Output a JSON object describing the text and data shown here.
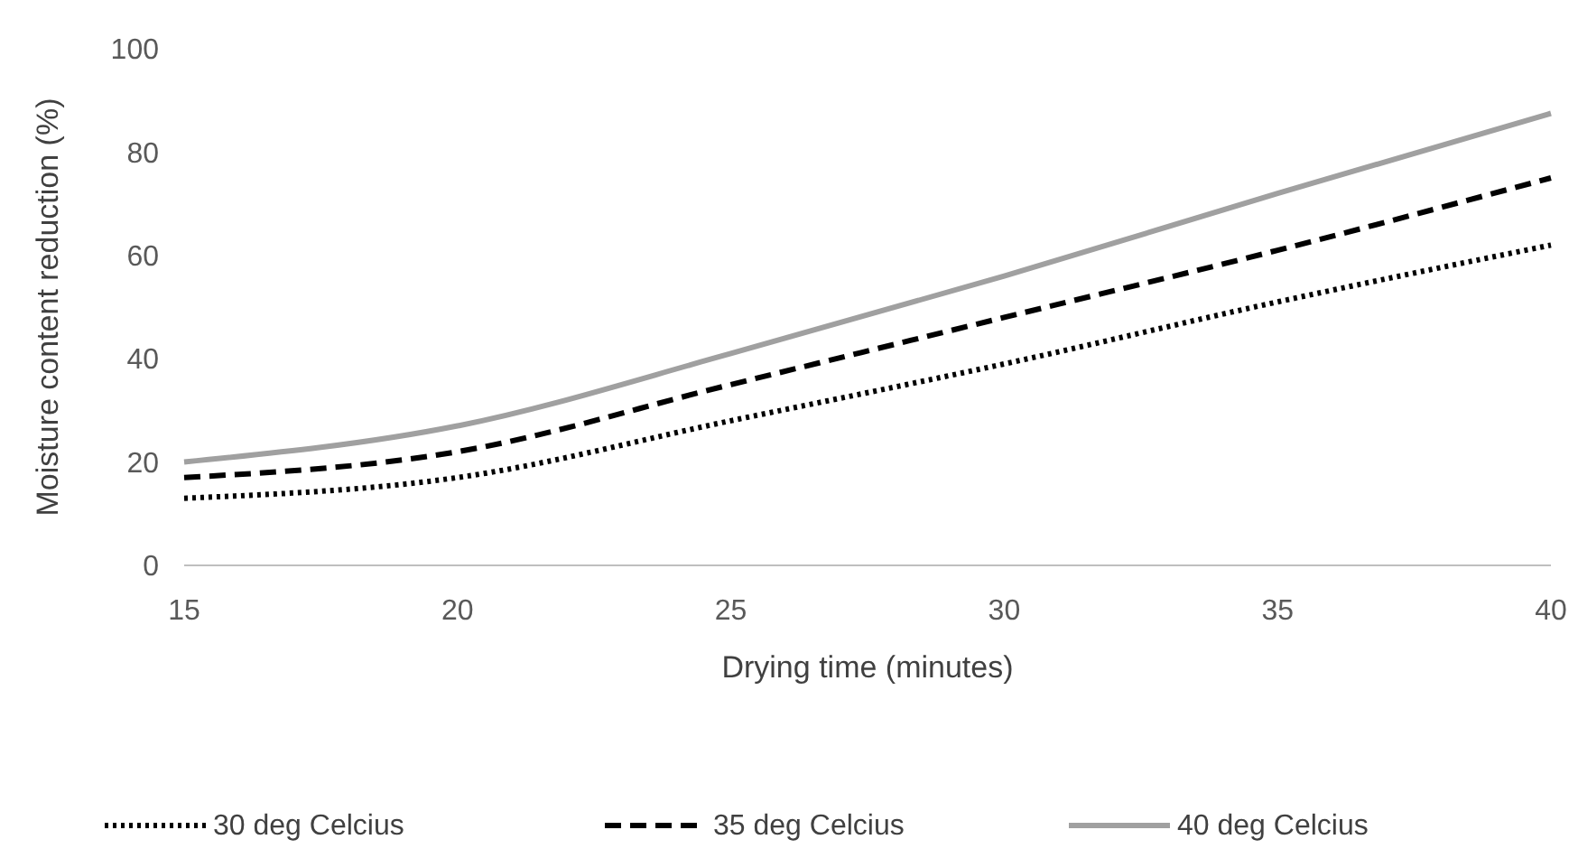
{
  "chart_data": {
    "type": "line",
    "xlabel": "Drying time (minutes)",
    "ylabel": "Moisture content reduction (%)",
    "x": [
      15,
      20,
      25,
      30,
      35,
      40
    ],
    "xlim": [
      15,
      40
    ],
    "xticks": [
      15,
      20,
      25,
      30,
      35,
      40
    ],
    "ylim": [
      0,
      100
    ],
    "yticks": [
      0,
      20,
      40,
      60,
      80,
      100
    ],
    "grid": false,
    "legend": "bottom",
    "marker": "none",
    "series": [
      {
        "name": "30 deg Celcius",
        "color": "#000000",
        "line_style": "dotted",
        "values": [
          13,
          17,
          28,
          39,
          51,
          62
        ]
      },
      {
        "name": "35 deg Celcius",
        "color": "#000000",
        "line_style": "dashed",
        "values": [
          17,
          22,
          35,
          48,
          61,
          75
        ]
      },
      {
        "name": "40 deg Celcius",
        "color": "#a0a0a0",
        "line_style": "solid",
        "values": [
          20,
          27,
          41,
          56,
          72,
          87.5
        ]
      }
    ]
  }
}
